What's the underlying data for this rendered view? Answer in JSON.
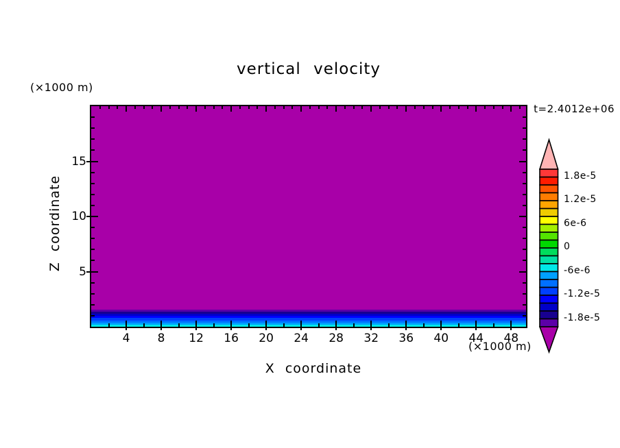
{
  "title": "vertical velocity",
  "time_label": "t=2.4012e+06",
  "axes": {
    "x_label": "X coordinate",
    "x_unit": "(×1000 m)",
    "z_label": "Z coordinate",
    "z_unit": "(×1000 m)",
    "x_tick_labels": [
      4,
      8,
      12,
      16,
      20,
      24,
      28,
      32,
      36,
      40,
      44,
      48
    ],
    "z_tick_labels": [
      5,
      10,
      15
    ],
    "x_range": [
      0,
      49.7
    ],
    "z_range": [
      0,
      20
    ]
  },
  "colorbar": {
    "high_arrow_color": "#FFB4B4",
    "low_arrow_color": "#A800A8",
    "segment_colors": [
      "#FF3838",
      "#FF1C00",
      "#FF5400",
      "#FF7C00",
      "#FFA400",
      "#F0CC00",
      "#FFFF00",
      "#A4F000",
      "#54E400",
      "#00D800",
      "#00DC5C",
      "#00E0A4",
      "#00E8E8",
      "#00A0FF",
      "#0070FF",
      "#0040FF",
      "#0000FF",
      "#0000C8",
      "#180090",
      "#5C00A8"
    ],
    "labels": [
      {
        "text": "1.8e-5",
        "at": 1
      },
      {
        "text": "1.2e-5",
        "at": 4
      },
      {
        "text": "6e-6",
        "at": 7
      },
      {
        "text": "0",
        "at": 10
      },
      {
        "text": "-6e-6",
        "at": 13
      },
      {
        "text": "-1.2e-5",
        "at": 16
      },
      {
        "text": "-1.8e-5",
        "at": 19
      }
    ]
  },
  "chart_data": {
    "type": "heatmap",
    "title": "vertical velocity",
    "xlabel": "X coordinate (×1000 m)",
    "ylabel": "Z coordinate (×1000 m)",
    "x_range": [
      0,
      50
    ],
    "z_range": [
      0,
      20
    ],
    "time_annotation": "t=2.4012e+06",
    "contour_interval": 2e-06,
    "level_min": -2e-05,
    "level_max": 2e-05,
    "levels_labeled": [
      1.8e-05,
      1.2e-05,
      6e-06,
      0,
      -6e-06,
      -1.2e-05,
      -1.8e-05
    ],
    "summary": "Vertical velocity is below the colour-scale minimum (w < -2e-5, purple) over almost the whole 50 km x 20 km domain; in a thin layer below z = 1.5 km it increases monotonically toward about -6e-6 at the surface, producing horizontal stripes from indigo through blue to cyan.",
    "bands": [
      {
        "z_top": 20.0,
        "z_bottom": 1.55,
        "color": "#A800A8",
        "value": "w < -2.0e-5"
      },
      {
        "z_top": 1.55,
        "z_bottom": 1.36,
        "color": "#5C00A8",
        "value": "-2.0e-5 to -1.8e-5"
      },
      {
        "z_top": 1.36,
        "z_bottom": 1.17,
        "color": "#180090",
        "value": "-1.8e-5 to -1.6e-5"
      },
      {
        "z_top": 1.17,
        "z_bottom": 0.97,
        "color": "#0000C8",
        "value": "-1.6e-5 to -1.4e-5"
      },
      {
        "z_top": 0.97,
        "z_bottom": 0.78,
        "color": "#0000FF",
        "value": "-1.4e-5 to -1.2e-5"
      },
      {
        "z_top": 0.78,
        "z_bottom": 0.58,
        "color": "#0040FF",
        "value": "-1.2e-5 to -1.0e-5"
      },
      {
        "z_top": 0.58,
        "z_bottom": 0.39,
        "color": "#0070FF",
        "value": "-1.0e-5 to -8.0e-6"
      },
      {
        "z_top": 0.39,
        "z_bottom": 0.19,
        "color": "#00A0FF",
        "value": "-8.0e-6 to -7.0e-6"
      },
      {
        "z_top": 0.19,
        "z_bottom": 0.0,
        "color": "#00E8E8",
        "value": "about -6.0e-6"
      }
    ]
  }
}
